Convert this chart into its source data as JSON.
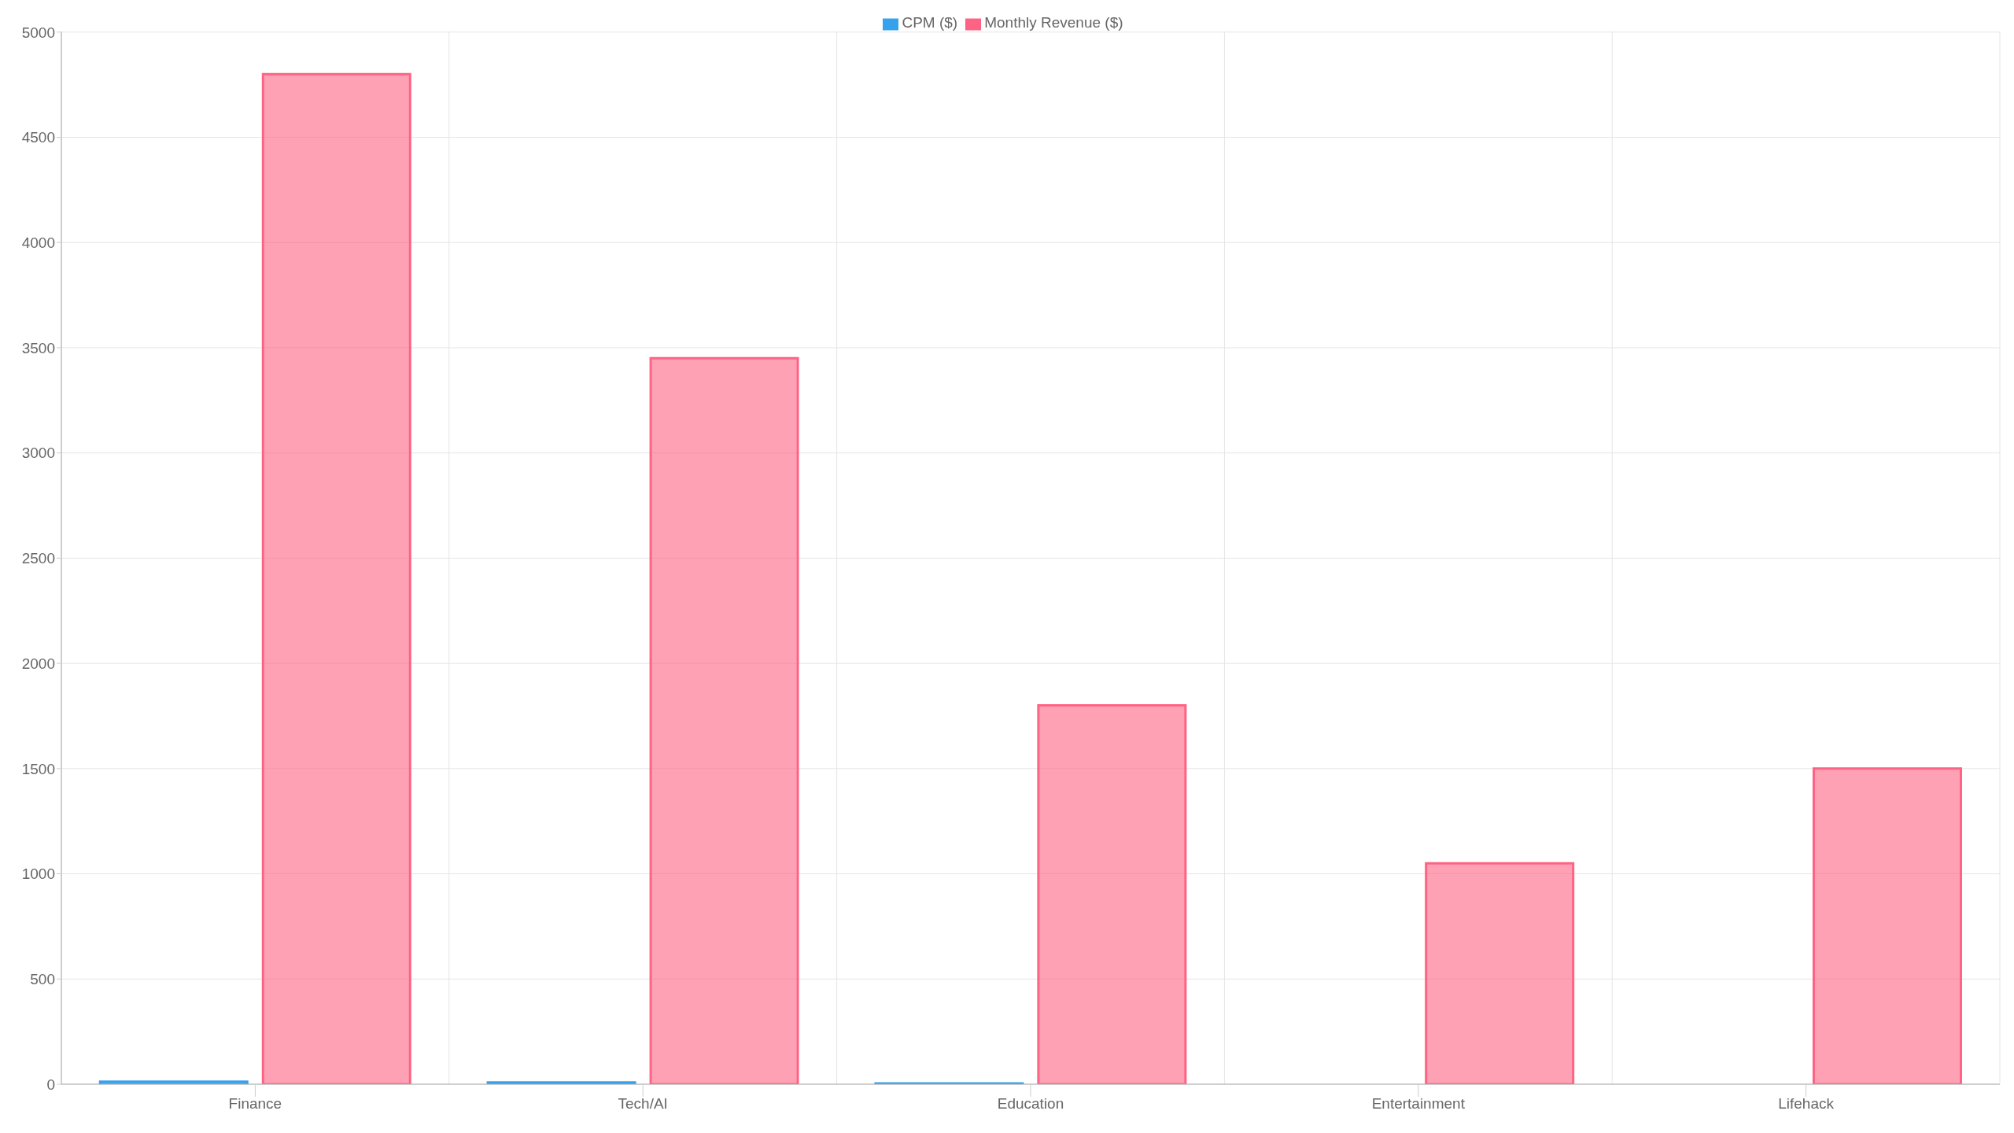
{
  "chart_data": {
    "type": "bar",
    "categories": [
      "Finance",
      "Tech/AI",
      "Education",
      "Entertainment",
      "Lifehack"
    ],
    "series": [
      {
        "name": "CPM ($)",
        "color": "#36a2eb",
        "values": [
          12,
          8,
          4,
          null,
          null
        ]
      },
      {
        "name": "Monthly Revenue ($)",
        "color": "#ff6384",
        "values": [
          4800,
          3450,
          1800,
          1050,
          1500
        ]
      }
    ],
    "ylim": [
      0,
      5000
    ],
    "yticks": [
      0,
      500,
      1000,
      1500,
      2000,
      2500,
      3000,
      3500,
      4000,
      4500,
      5000
    ],
    "grid": true,
    "legend": "top"
  }
}
